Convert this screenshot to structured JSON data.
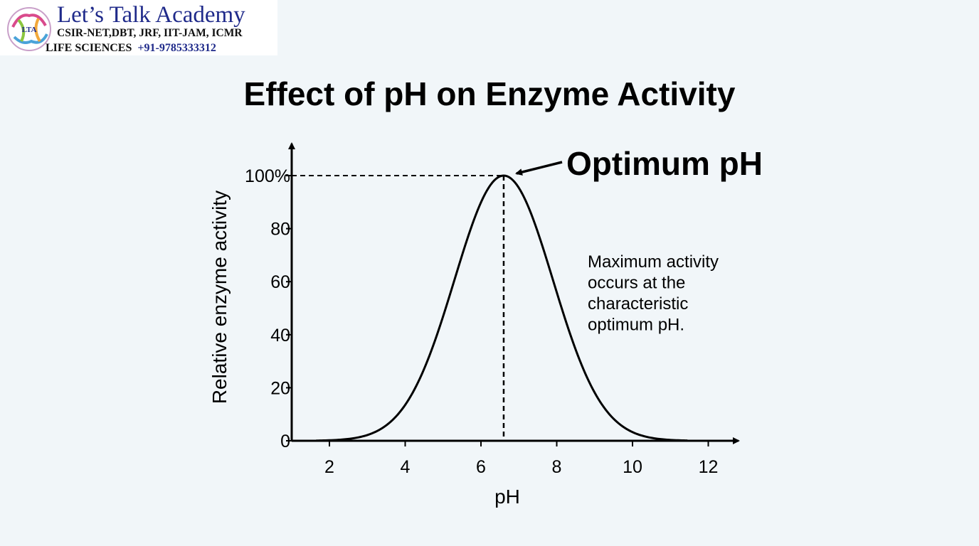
{
  "brand": {
    "title": "Let’s Talk Academy",
    "subtitle": "CSIR-NET,DBT, JRF, IIT-JAM, ICMR",
    "tagline_left": "LIFE SCIENCES",
    "phone": "+91-9785333312",
    "emblem_text": "LTA",
    "colors": {
      "title": "#1f2a8a",
      "subtitle": "#111111"
    }
  },
  "chart_data": {
    "type": "line",
    "title": "Effect of pH on Enzyme Activity",
    "xlabel": "pH",
    "ylabel": "Relative enzyme activity",
    "xlim": [
      1,
      12.8
    ],
    "ylim": [
      0,
      110
    ],
    "x_ticks": [
      2,
      4,
      6,
      8,
      10,
      12
    ],
    "y_ticks": [
      0,
      20,
      40,
      60,
      80,
      100
    ],
    "y_tick_labels": [
      "0",
      "20",
      "40",
      "60",
      "80",
      "100%"
    ],
    "grid": false,
    "series": [
      {
        "color": "#000000",
        "curve": {
          "kind": "gaussian",
          "mean": 6.6,
          "sd": 1.3,
          "peak": 100,
          "x_start": 1.65,
          "x_end": 11.45
        },
        "x": [
          1.65,
          2,
          2.5,
          3,
          3.5,
          4,
          4.5,
          5,
          5.5,
          6,
          6.6,
          7,
          7.5,
          8,
          8.5,
          9,
          9.5,
          10,
          10.5,
          11,
          11.45
        ],
        "values": [
          0.1,
          0.2,
          0.7,
          2,
          6,
          13,
          26,
          44,
          65,
          88,
          100,
          95,
          79,
          56,
          34,
          18,
          8,
          3,
          1,
          0.3,
          0.1
        ]
      }
    ],
    "annotations": [
      {
        "id": "optimum",
        "text": "Optimum pH",
        "x": 6.6,
        "y": 100,
        "arrow": true
      },
      {
        "id": "note",
        "lines": [
          "Maximum activity",
          "occurs at the",
          "characteristic",
          "optimum pH."
        ]
      }
    ],
    "reference_lines": {
      "optimum_x": 6.6,
      "optimum_y": 100,
      "style": "dashed"
    }
  }
}
